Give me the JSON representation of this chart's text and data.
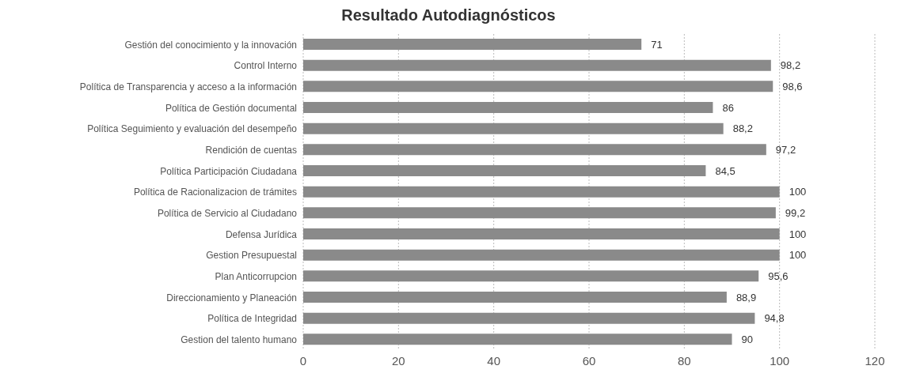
{
  "chart_data": {
    "type": "bar",
    "orientation": "horizontal",
    "title": "Resultado Autodiagnósticos",
    "categories": [
      "Gestión del conocimiento y la innovación",
      "Control Interno",
      "Política de Transparencia y acceso a la información",
      "Política de Gestión documental",
      "Política Seguimiento y evaluación del desempeño",
      "Rendición de cuentas",
      "Política Participación Ciudadana",
      "Política de Racionalizacion de trámites",
      "Política de Servicio al Ciudadano",
      "Defensa Jurídica",
      "Gestion Presupuestal",
      "Plan Anticorrupcion",
      "Direccionamiento y Planeación",
      "Política de Integridad",
      "Gestion del talento humano"
    ],
    "values": [
      71,
      98.2,
      98.6,
      86,
      88.2,
      97.2,
      84.5,
      100,
      99.2,
      100,
      100,
      95.6,
      88.9,
      94.8,
      90
    ],
    "value_labels": [
      "71",
      "98,2",
      "98,6",
      "86",
      "88,2",
      "97,2",
      "84,5",
      "100",
      "99,2",
      "100",
      "100",
      "95,6",
      "88,9",
      "94,8",
      "90"
    ],
    "color": "#8a8a8a",
    "xlim": [
      0,
      120
    ],
    "xticks": [
      0,
      20,
      40,
      60,
      80,
      100,
      120
    ],
    "grid": "x"
  }
}
